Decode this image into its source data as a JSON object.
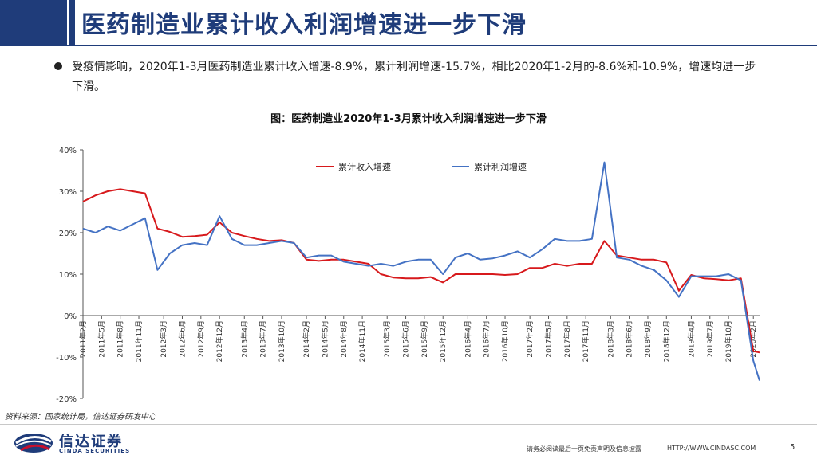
{
  "header": {
    "title": "医药制造业累计收入利润增速进一步下滑"
  },
  "bullet": {
    "text": "受疫情影响，2020年1-3月医药制造业累计收入增速-8.9%，累计利润增速-15.7%，相比2020年1-2月的-8.6%和-10.9%，增速均进一步下滑。"
  },
  "chart_data": {
    "type": "line",
    "title": "图：医药制造业2020年1-3月累计收入利润增速进一步下滑",
    "xlabel": "",
    "ylabel": "",
    "ylim": [
      -20,
      40
    ],
    "y_ticks": [
      -20,
      -10,
      0,
      10,
      20,
      30,
      40
    ],
    "y_tick_labels": [
      "-20%",
      "-10%",
      "0%",
      "10%",
      "20%",
      "30%",
      "40%"
    ],
    "x_start": "2011-02",
    "x_end": "2020-03",
    "x_ticks": [
      "2011-02",
      "2011-05",
      "2011-08",
      "2011-11",
      "2012-03",
      "2012-06",
      "2012-09",
      "2012-12",
      "2013-04",
      "2013-07",
      "2013-10",
      "2014-02",
      "2014-05",
      "2014-08",
      "2014-11",
      "2015-03",
      "2015-06",
      "2015-09",
      "2015-12",
      "2016-04",
      "2016-07",
      "2016-10",
      "2017-02",
      "2017-05",
      "2017-08",
      "2017-11",
      "2018-03",
      "2018-06",
      "2018-09",
      "2018-12",
      "2019-04",
      "2019-07",
      "2019-10",
      "2020-02"
    ],
    "x_tick_labels": [
      "2011年2月",
      "2011年5月",
      "2011年8月",
      "2011年11月",
      "2012年3月",
      "2012年6月",
      "2012年9月",
      "2012年12月",
      "2013年4月",
      "2013年7月",
      "2013年10月",
      "2014年2月",
      "2014年5月",
      "2014年8月",
      "2014年11月",
      "2015年3月",
      "2015年6月",
      "2015年9月",
      "2015年12月",
      "2016年4月",
      "2016年7月",
      "2016年10月",
      "2017年2月",
      "2017年5月",
      "2017年8月",
      "2017年11月",
      "2018年3月",
      "2018年6月",
      "2018年9月",
      "2018年12月",
      "2019年4月",
      "2019年7月",
      "2019年10月",
      "2020年2月"
    ],
    "grid": false,
    "legend": "top",
    "series": [
      {
        "name": "累计收入增速",
        "color": "#d7191c",
        "x": [
          "2011-02",
          "2011-04",
          "2011-06",
          "2011-08",
          "2011-10",
          "2011-12",
          "2012-02",
          "2012-04",
          "2012-06",
          "2012-08",
          "2012-10",
          "2012-12",
          "2013-02",
          "2013-04",
          "2013-06",
          "2013-08",
          "2013-10",
          "2013-12",
          "2014-02",
          "2014-04",
          "2014-06",
          "2014-08",
          "2014-10",
          "2014-12",
          "2015-02",
          "2015-04",
          "2015-06",
          "2015-08",
          "2015-10",
          "2015-12",
          "2016-02",
          "2016-04",
          "2016-06",
          "2016-08",
          "2016-10",
          "2016-12",
          "2017-02",
          "2017-04",
          "2017-06",
          "2017-08",
          "2017-10",
          "2017-12",
          "2018-02",
          "2018-04",
          "2018-06",
          "2018-08",
          "2018-10",
          "2018-12",
          "2019-02",
          "2019-04",
          "2019-06",
          "2019-08",
          "2019-10",
          "2019-12",
          "2020-02",
          "2020-03"
        ],
        "values": [
          27.5,
          29.0,
          30.0,
          30.5,
          30.0,
          29.5,
          21.0,
          20.2,
          19.0,
          19.2,
          19.5,
          22.5,
          20.0,
          19.2,
          18.5,
          18.0,
          18.2,
          17.5,
          13.5,
          13.2,
          13.5,
          13.5,
          13.0,
          12.5,
          10.0,
          9.2,
          9.0,
          9.0,
          9.3,
          8.0,
          10.0,
          10.0,
          10.0,
          10.0,
          9.8,
          10.0,
          11.5,
          11.5,
          12.5,
          12.0,
          12.5,
          12.5,
          18.0,
          14.5,
          14.0,
          13.5,
          13.5,
          12.8,
          6.0,
          9.8,
          9.0,
          8.8,
          8.5,
          9.0,
          -8.6,
          -8.9
        ]
      },
      {
        "name": "累计利润增速",
        "color": "#4472c4",
        "x": [
          "2011-02",
          "2011-04",
          "2011-06",
          "2011-08",
          "2011-10",
          "2011-12",
          "2012-02",
          "2012-04",
          "2012-06",
          "2012-08",
          "2012-10",
          "2012-12",
          "2013-02",
          "2013-04",
          "2013-06",
          "2013-08",
          "2013-10",
          "2013-12",
          "2014-02",
          "2014-04",
          "2014-06",
          "2014-08",
          "2014-10",
          "2014-12",
          "2015-02",
          "2015-04",
          "2015-06",
          "2015-08",
          "2015-10",
          "2015-12",
          "2016-02",
          "2016-04",
          "2016-06",
          "2016-08",
          "2016-10",
          "2016-12",
          "2017-02",
          "2017-04",
          "2017-06",
          "2017-08",
          "2017-10",
          "2017-12",
          "2018-02",
          "2018-04",
          "2018-06",
          "2018-08",
          "2018-10",
          "2018-12",
          "2019-02",
          "2019-04",
          "2019-06",
          "2019-08",
          "2019-10",
          "2019-12",
          "2020-02",
          "2020-03"
        ],
        "values": [
          21.0,
          20.0,
          21.5,
          20.5,
          22.0,
          23.5,
          11.0,
          15.0,
          17.0,
          17.5,
          17.0,
          24.0,
          18.5,
          17.0,
          17.0,
          17.5,
          18.0,
          17.5,
          14.0,
          14.5,
          14.5,
          13.0,
          12.5,
          12.0,
          12.5,
          12.0,
          13.0,
          13.5,
          13.5,
          10.0,
          14.0,
          15.0,
          13.5,
          13.8,
          14.5,
          15.5,
          14.0,
          16.0,
          18.5,
          18.0,
          18.0,
          18.5,
          37.0,
          14.0,
          13.5,
          12.0,
          11.0,
          8.5,
          4.5,
          9.5,
          9.5,
          9.5,
          10.0,
          8.5,
          -10.9,
          -15.7
        ]
      }
    ]
  },
  "source": {
    "text": "资料来源：国家统计局，信达证券研发中心"
  },
  "footer": {
    "logo_cn": "信达证券",
    "logo_en": "CINDA SECURITIES",
    "logo_colors": [
      "#1f3c7a",
      "#c8102e"
    ],
    "disclaimer": "请务必阅读最后一页免责声明及信息披露",
    "site": "HTTP://WWW.CINDASC.COM",
    "page_number": "5"
  }
}
